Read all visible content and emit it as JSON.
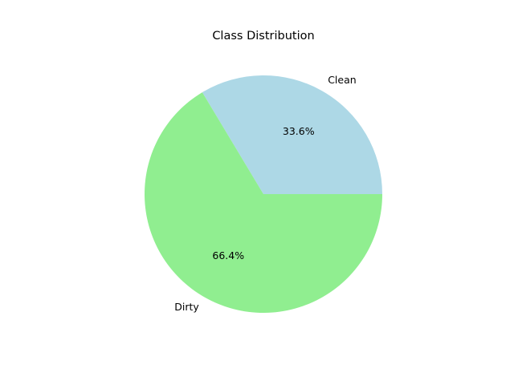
{
  "chart_data": {
    "type": "pie",
    "title": "Class Distribution",
    "categories": [
      "Clean",
      "Dirty"
    ],
    "values": [
      33.6,
      66.4
    ],
    "percent_labels": [
      "33.6%",
      "66.4%"
    ],
    "colors": [
      "#add8e6",
      "#90ee90"
    ],
    "start_angle": "0 degrees, counter-clockwise",
    "legend": "none",
    "grid": false
  }
}
